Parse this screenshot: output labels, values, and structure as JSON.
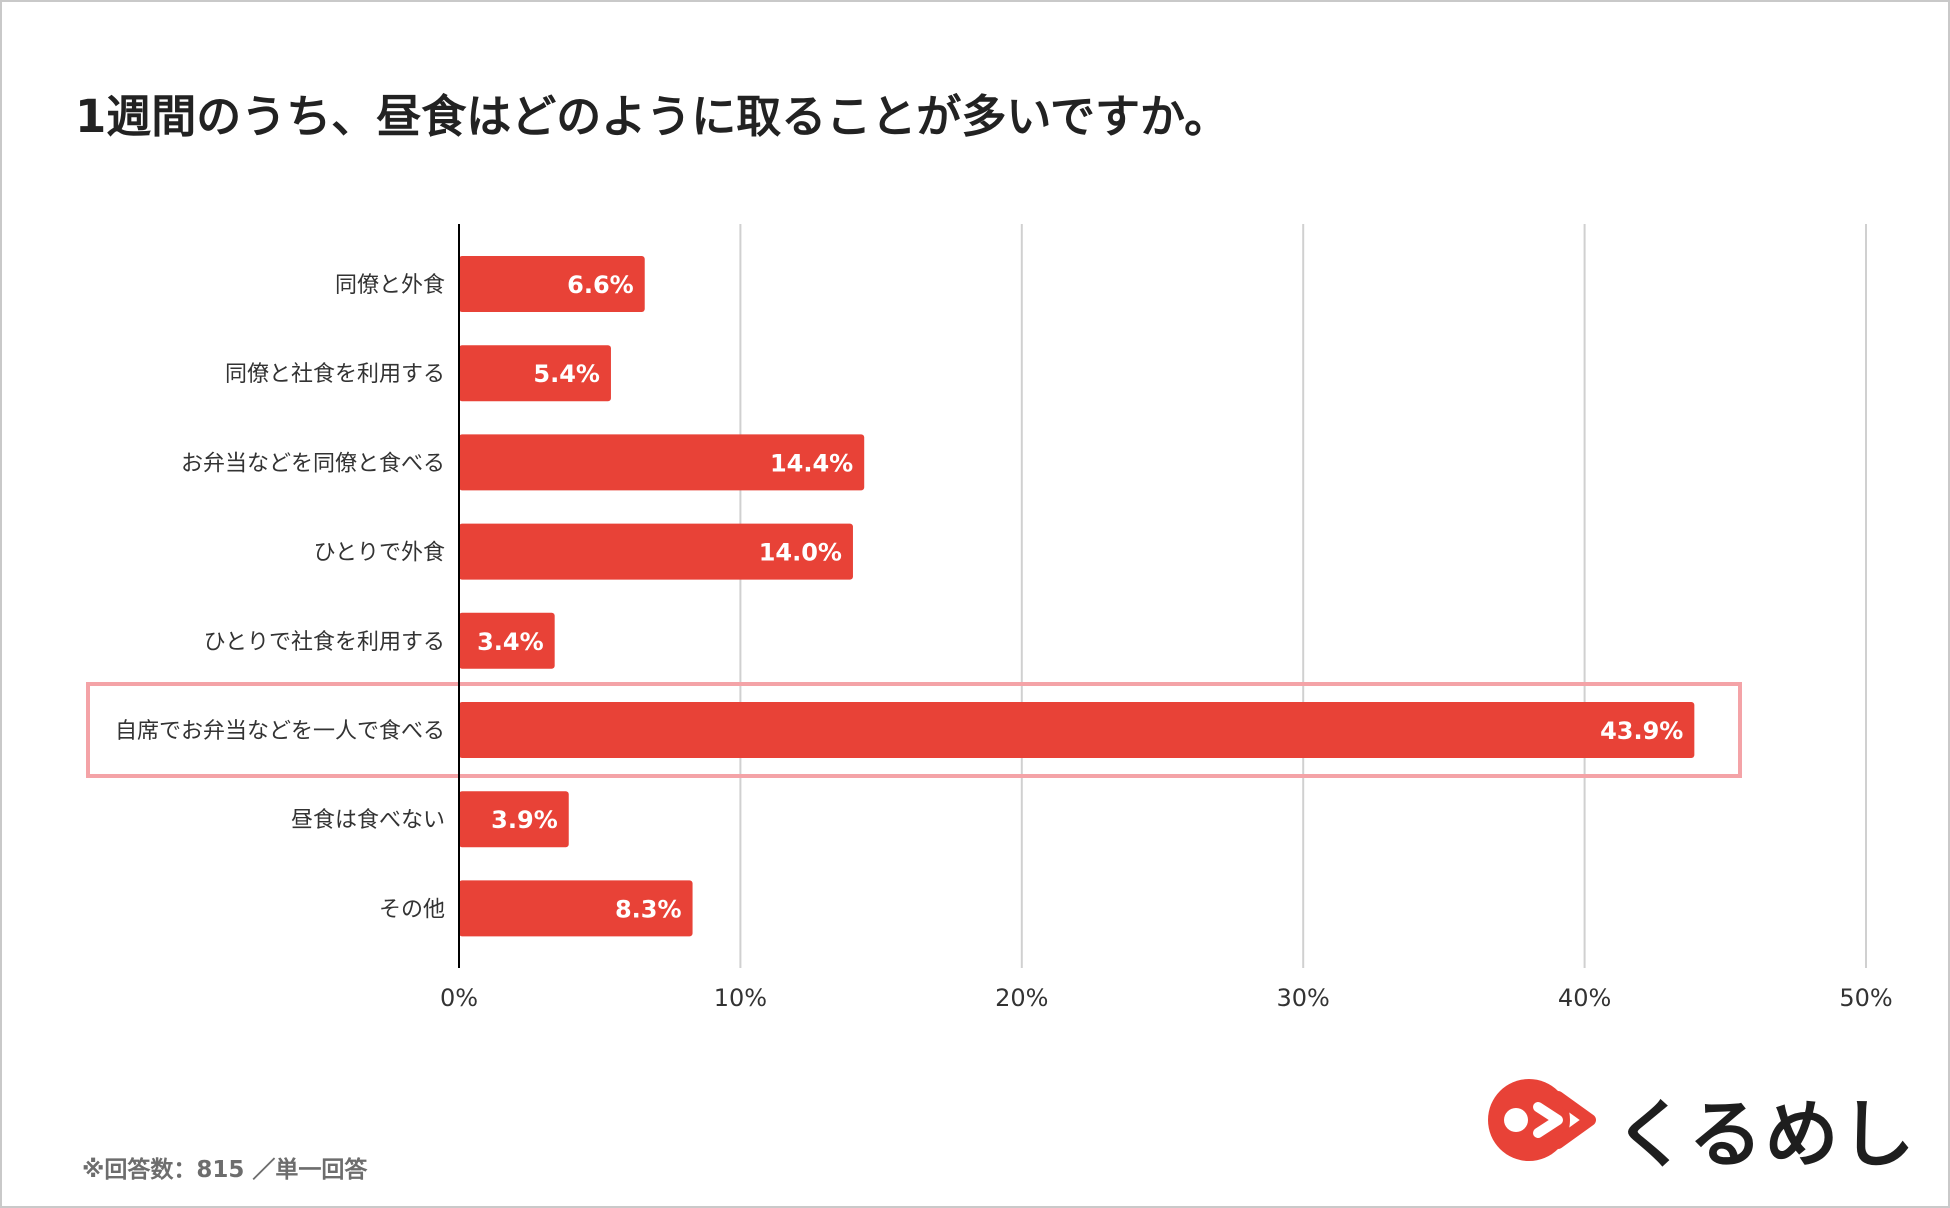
{
  "title": "1週間のうち、昼食はどのように取ることが多いですか。",
  "footnote": "※回答数：815 ／単一回答",
  "logo": {
    "text": "くるめし",
    "icon": "kurumeshi-logo-mark"
  },
  "colors": {
    "bar": "#e84237",
    "highlight": "#f4a3a7",
    "grid": "#d0d0d0",
    "axis": "#000000"
  },
  "chart_data": {
    "type": "bar",
    "orientation": "horizontal",
    "categories": [
      "同僚と外食",
      "同僚と社食を利用する",
      "お弁当などを同僚と食べる",
      "ひとりで外食",
      "ひとりで社食を利用する",
      "自席でお弁当などを一人で食べる",
      "昼食は食べない",
      "その他"
    ],
    "values": [
      6.6,
      5.4,
      14.4,
      14.0,
      3.4,
      43.9,
      3.9,
      8.3
    ],
    "value_labels": [
      "6.6%",
      "5.4%",
      "14.4%",
      "14.0%",
      "3.4%",
      "43.9%",
      "3.9%",
      "8.3%"
    ],
    "xlim": [
      0,
      50
    ],
    "xticks": [
      "0%",
      "10%",
      "20%",
      "30%",
      "40%",
      "50%"
    ],
    "grid": true,
    "highlighted_category": "自席でお弁当などを一人で食べる"
  }
}
